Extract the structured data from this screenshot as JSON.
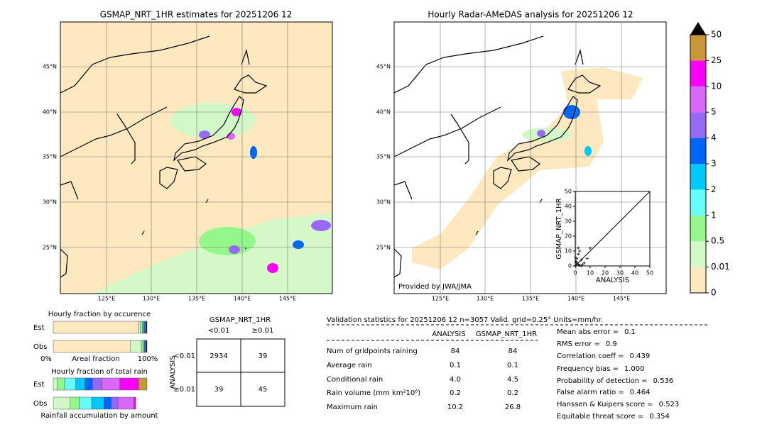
{
  "maps": {
    "left_title": "GSMAP_NRT_1HR estimates for 20251206 12",
    "right_title": "Hourly Radar-AMeDAS analysis for 20251206 12",
    "credit": "Provided by JWA/JMA",
    "lat_labels": [
      "45°N",
      "40°N",
      "35°N",
      "30°N",
      "25°N"
    ],
    "lon_labels": [
      "125°E",
      "130°E",
      "135°E",
      "140°E",
      "145°E"
    ]
  },
  "colorbar": {
    "ticks": [
      0,
      0.01,
      0.5,
      1,
      2,
      3,
      4,
      5,
      10,
      25,
      50
    ],
    "colors": [
      "#fde8c0",
      "#d2f8c8",
      "#94f78c",
      "#66fdf8",
      "#00c8f8",
      "#0066f8",
      "#9868f8",
      "#d868f8",
      "#f800f8",
      "#c89838"
    ],
    "over_color": "#000000"
  },
  "scatter": {
    "type": "scatter",
    "xlabel": "ANALYSIS",
    "ylabel": "GSMAP_NRT_1HR",
    "xlim": [
      0,
      50
    ],
    "ylim": [
      0,
      50
    ],
    "xticks": [
      0,
      10,
      20,
      30,
      40,
      50
    ],
    "yticks": [
      0,
      10,
      20,
      30,
      40,
      50
    ],
    "x": [
      0,
      1,
      2,
      0.5,
      3,
      1,
      2,
      4,
      5,
      3,
      6,
      8,
      10,
      2,
      0,
      1,
      4
    ],
    "y": [
      0,
      2,
      1,
      3,
      0.5,
      5,
      8,
      4,
      1,
      10,
      2,
      5,
      12,
      12,
      6,
      1,
      0
    ]
  },
  "fractions": {
    "occurrence_title": "Hourly fraction by occurence",
    "total_title": "Hourly fraction of total rain",
    "axis_left": "0%",
    "axis_mid": "Areal fraction",
    "axis_right": "100%",
    "caption": "Rainfall accumulation by amount",
    "occurrence": [
      {
        "name": "Est",
        "values": [
          91,
          2,
          2,
          1,
          1,
          1,
          1,
          1
        ],
        "colors": [
          "#fde8c0",
          "#d2f8c8",
          "#94f78c",
          "#66fdf8",
          "#00c8f8",
          "#0066f8",
          "#9868f8",
          "#000000"
        ]
      },
      {
        "name": "Obs",
        "values": [
          82,
          12,
          2,
          1,
          1,
          1,
          1
        ],
        "colors": [
          "#fde8c0",
          "#d2f8c8",
          "#94f78c",
          "#66fdf8",
          "#0066f8",
          "#9868f8",
          "#000000"
        ]
      }
    ],
    "total": [
      {
        "name": "Est",
        "values": [
          4,
          8,
          12,
          10,
          8,
          10,
          19,
          20,
          9
        ],
        "colors": [
          "#d2f8c8",
          "#94f78c",
          "#66fdf8",
          "#00c8f8",
          "#0066f8",
          "#9868f8",
          "#d868f8",
          "#f800f8",
          "#c89838"
        ]
      },
      {
        "name": "Obs",
        "values": [
          18,
          10,
          13,
          13,
          8,
          7,
          17,
          2
        ],
        "colors": [
          "#d2f8c8",
          "#94f78c",
          "#66fdf8",
          "#00c8f8",
          "#0066f8",
          "#9868f8",
          "#d868f8",
          "#f800f8"
        ]
      }
    ]
  },
  "contingency": {
    "header": "GSMAP_NRT_1HR",
    "col_labels": [
      "<0.01",
      "≥0.01"
    ],
    "row_title": "ANALYSIS",
    "row_labels": [
      "<0.01",
      "≥0.01"
    ],
    "cells": [
      [
        "2934",
        "39"
      ],
      [
        "39",
        "45"
      ]
    ]
  },
  "stats": {
    "title": "Validation statistics for 20251206 12  n=3057 Valid. grid=0.25° Units=mm/hr.",
    "columns": [
      "ANALYSIS",
      "GSMAP_NRT_1HR"
    ],
    "rows": [
      [
        "Num of gridpoints raining",
        "84",
        "84"
      ],
      [
        "Average rain",
        "0.1",
        "0.1"
      ],
      [
        "Conditional rain",
        "4.0",
        "4.5"
      ],
      [
        "Rain volume (mm km²10⁶)",
        "0.2",
        "0.2"
      ],
      [
        "Maximum rain",
        "10.2",
        "26.8"
      ]
    ],
    "scores": [
      [
        "Mean abs error =",
        "0.1"
      ],
      [
        "RMS error =",
        "0.9"
      ],
      [
        "Correlation coeff =",
        "0.439"
      ],
      [
        "Frequency bias =",
        "1.000"
      ],
      [
        "Probability of detection =",
        "0.536"
      ],
      [
        "False alarm ratio =",
        "0.464"
      ],
      [
        "Hanssen & Kuipers score =",
        "0.523"
      ],
      [
        "Equitable threat score =",
        "0.354"
      ]
    ]
  }
}
